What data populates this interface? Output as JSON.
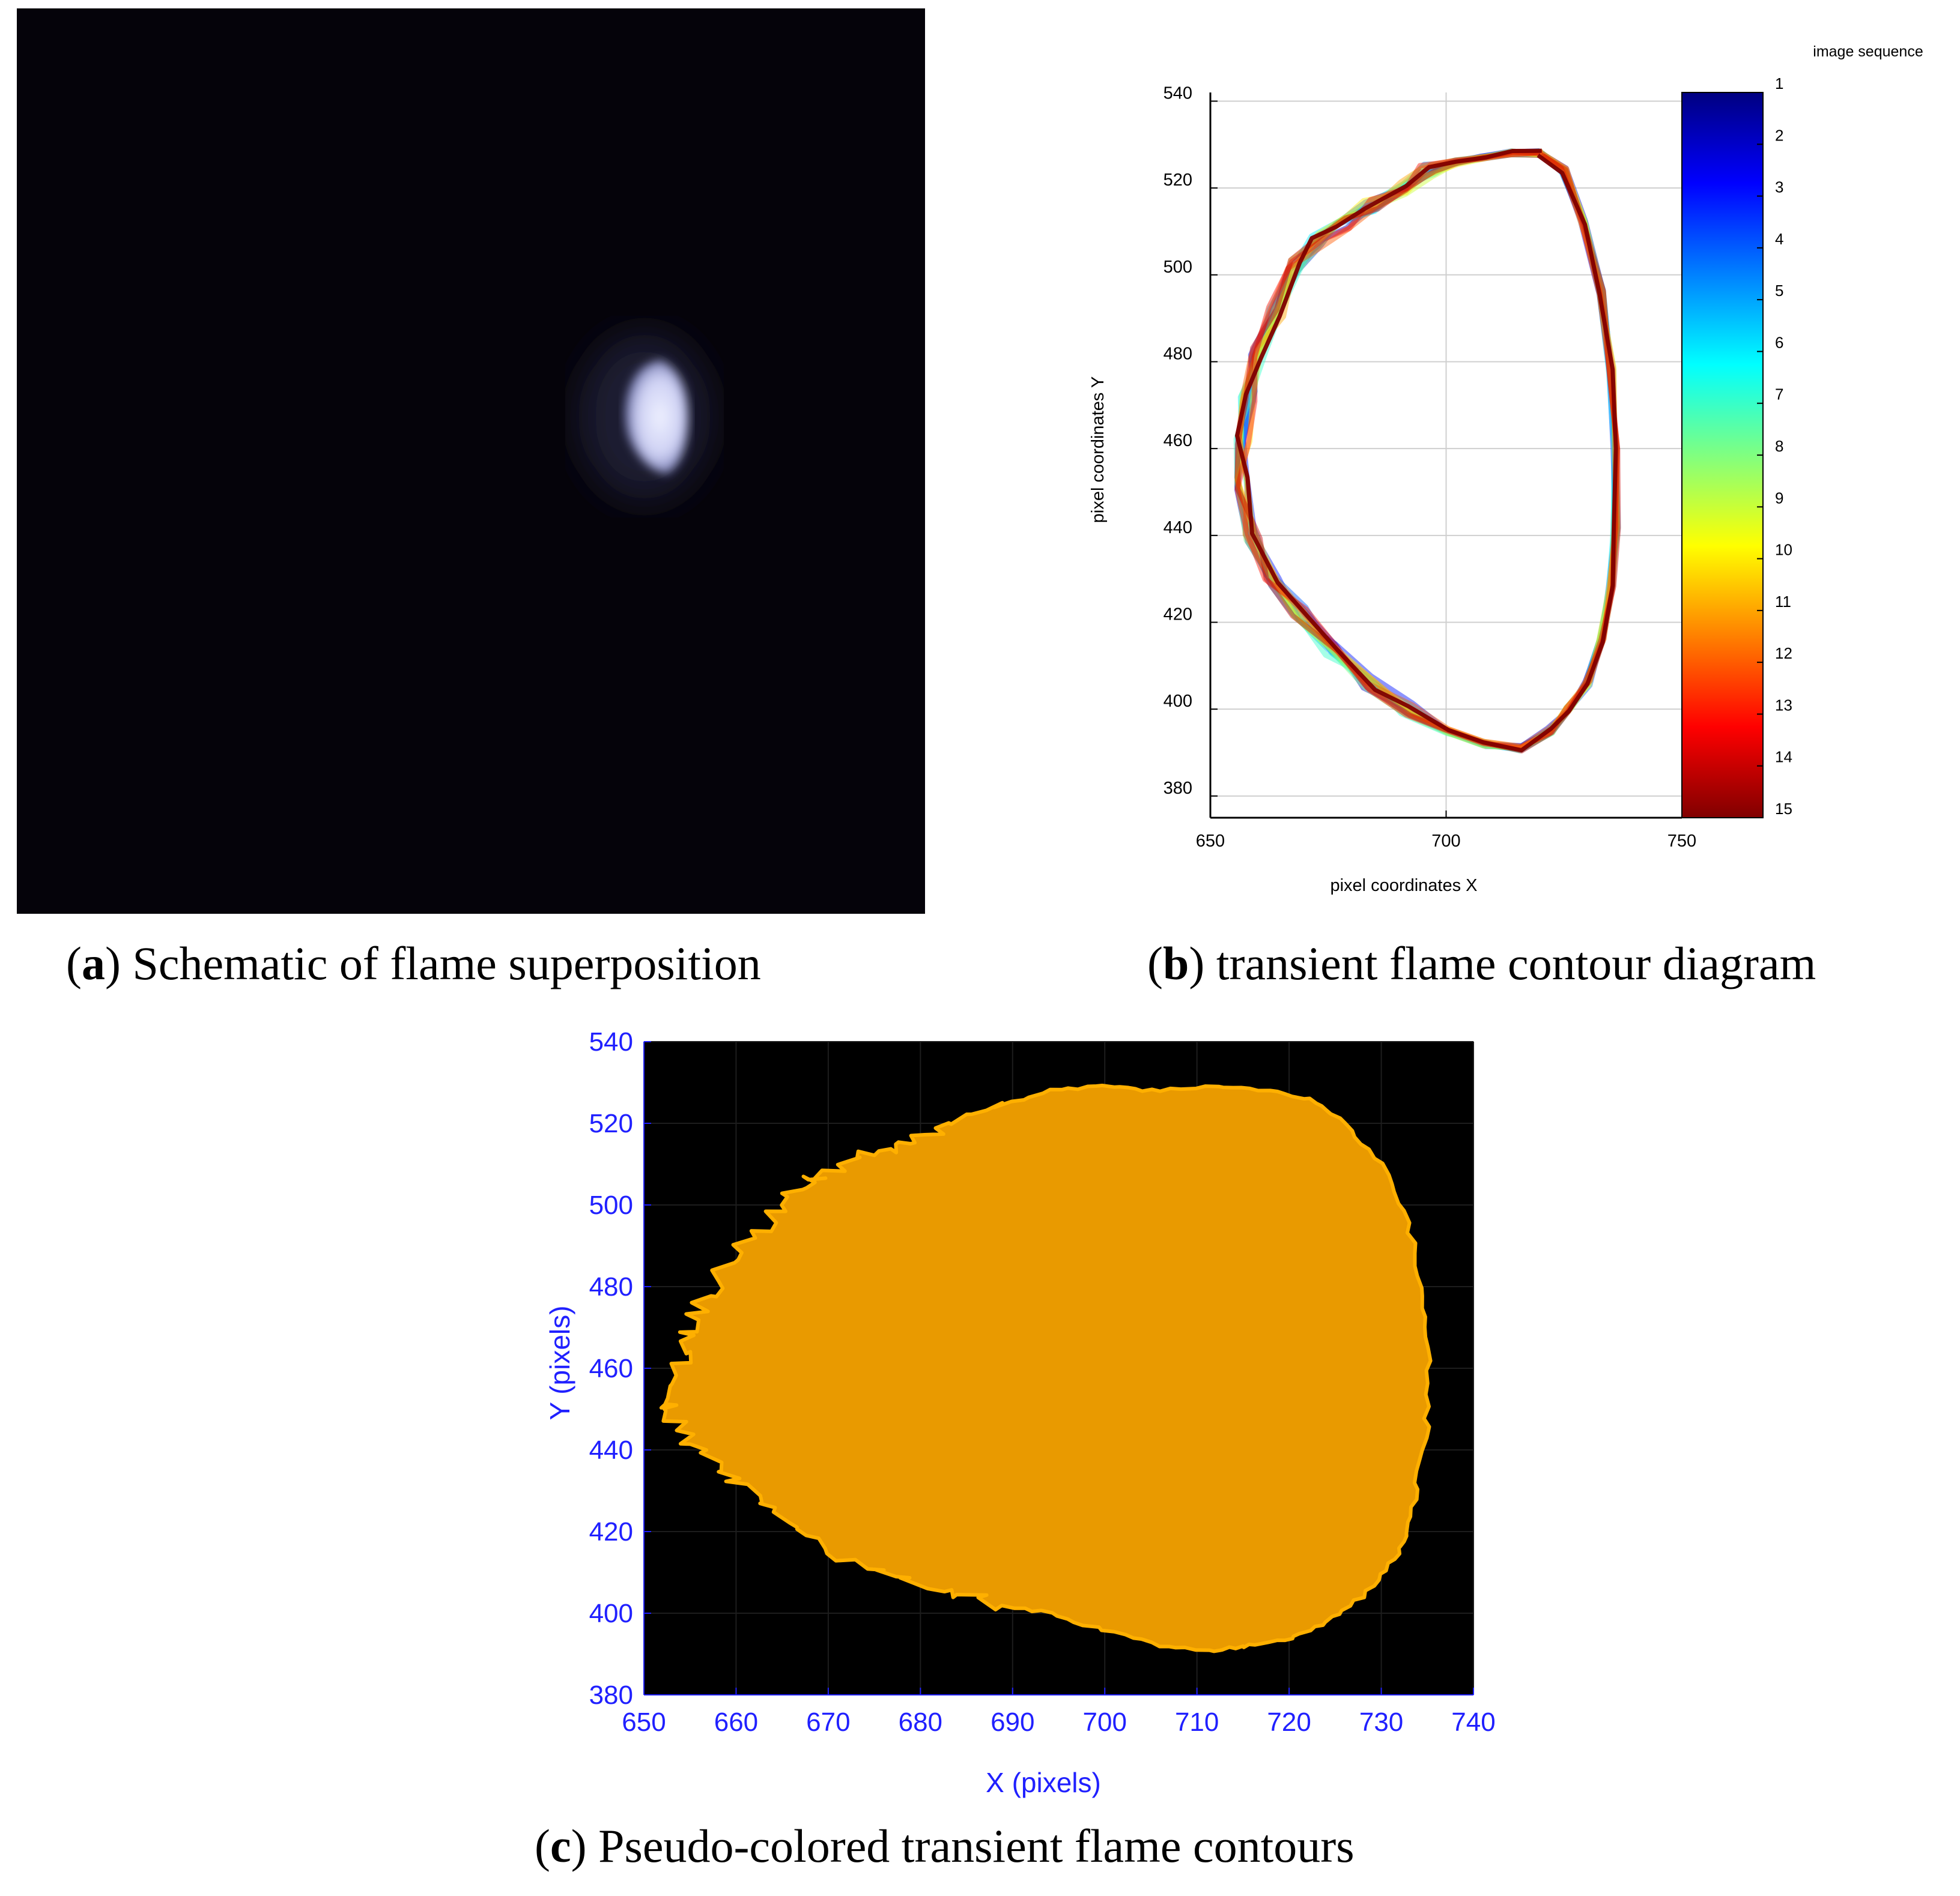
{
  "captions": {
    "a": {
      "letter": "a",
      "text": " Schematic of flame superposition"
    },
    "b": {
      "letter": "b",
      "text": " transient flame contour diagram"
    },
    "c": {
      "letter": "c",
      "text": " Pseudo-colored transient flame contours"
    }
  },
  "chart_data": [
    {
      "panel": "a",
      "type": "image",
      "description_colors": {
        "background": "#05030a",
        "flame": "#dfe2fb"
      }
    },
    {
      "panel": "b",
      "type": "line",
      "title": "",
      "xlabel": "pixel coordinates X",
      "ylabel": "pixel coordinates Y",
      "xlim": [
        650,
        750
      ],
      "ylim": [
        375,
        542
      ],
      "xticks": [
        650,
        700,
        750
      ],
      "yticks": [
        380,
        400,
        420,
        440,
        460,
        480,
        500,
        520,
        540
      ],
      "grid": true,
      "colorbar": {
        "label": "image sequence",
        "ticks": [
          1,
          2,
          3,
          4,
          5,
          6,
          7,
          8,
          9,
          10,
          11,
          12,
          13,
          14,
          15
        ],
        "colormap": [
          "#000080",
          "#0000ff",
          "#0080ff",
          "#00ffff",
          "#80ff80",
          "#ffff00",
          "#ff8000",
          "#ff0000",
          "#800000"
        ]
      },
      "series_count": 15,
      "contour": {
        "x": [
          720,
          725,
          729,
          733,
          735,
          736,
          736,
          735,
          733,
          730,
          726,
          722,
          716,
          708,
          700,
          692,
          684,
          676,
          669,
          663,
          659,
          657,
          657,
          658,
          660,
          664,
          668,
          673,
          678,
          684,
          690,
          696,
          702,
          708,
          714,
          720
        ],
        "y": [
          528,
          524,
          512,
          496,
          478,
          460,
          442,
          428,
          416,
          406,
          400,
          395,
          391,
          392,
          395,
          400,
          406,
          414,
          422,
          430,
          440,
          452,
          462,
          472,
          482,
          492,
          502,
          508,
          512,
          516,
          520,
          524,
          526,
          527,
          528,
          528
        ]
      }
    },
    {
      "panel": "c",
      "type": "area",
      "title": "",
      "xlabel": "X (pixels)",
      "ylabel": "Y (pixels)",
      "xlim": [
        650,
        740
      ],
      "ylim": [
        380,
        540
      ],
      "xticks": [
        650,
        660,
        670,
        680,
        690,
        700,
        710,
        720,
        730,
        740
      ],
      "yticks": [
        380,
        400,
        420,
        440,
        460,
        480,
        500,
        520,
        540
      ],
      "grid": true,
      "colors": {
        "background": "#000000",
        "fill": "#e99a00",
        "edge": "#ffb000",
        "axis_text": "#2020ff"
      },
      "contour": {
        "x": [
          705,
          712,
          718,
          722,
          726,
          730,
          733,
          734,
          735,
          735,
          734,
          733,
          731,
          728,
          724,
          720,
          716,
          712,
          706,
          700,
          694,
          688,
          682,
          676,
          670,
          665,
          660,
          656,
          653,
          652,
          654,
          655,
          657,
          660,
          664,
          667,
          670,
          674,
          678,
          682,
          688,
          694,
          700
        ],
        "y": [
          528,
          529,
          528,
          526,
          520,
          510,
          496,
          480,
          465,
          448,
          432,
          420,
          412,
          404,
          398,
          394,
          392,
          391,
          392,
          396,
          400,
          402,
          406,
          410,
          416,
          424,
          432,
          440,
          448,
          452,
          462,
          470,
          478,
          488,
          498,
          505,
          508,
          512,
          515,
          519,
          524,
          528,
          529
        ]
      }
    }
  ]
}
